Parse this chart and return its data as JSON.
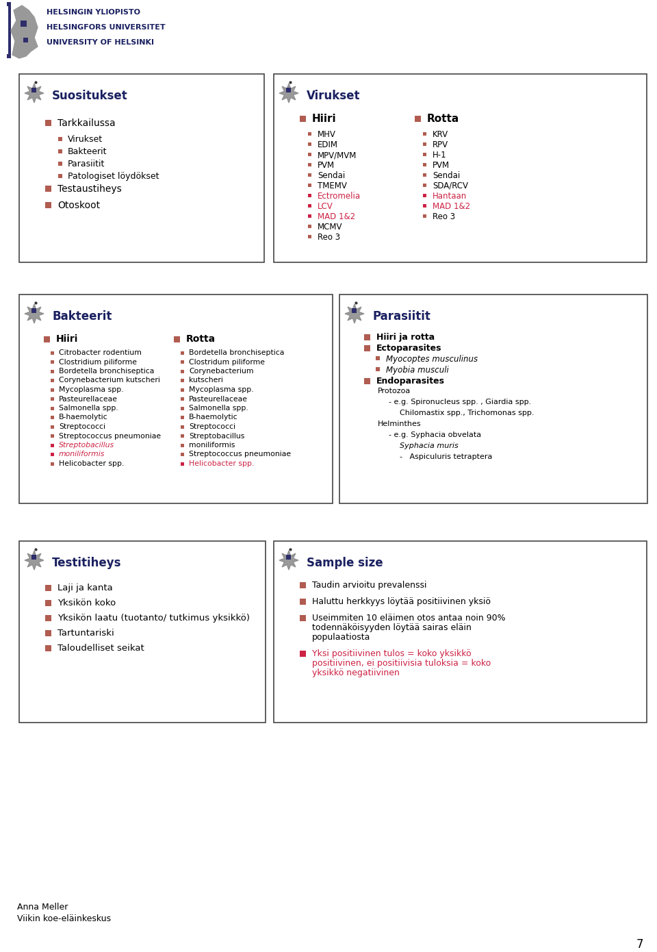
{
  "bg_color": "#ffffff",
  "dark_navy": "#1a2060",
  "bullet_color": "#b05c50",
  "red_color": "#cc2244",
  "header_lines": [
    "HELSINGIN YLIOPISTO",
    "HELSINGFORS UNIVERSITET",
    "UNIVERSITY OF HELSINKI"
  ],
  "footer_name": "Anna Meller",
  "footer_org": "Viikin koe-eläinkeskus",
  "page_num": "7",
  "box1_title": "Suositukset",
  "box1_content": [
    {
      "level": 1,
      "text": "Tarkkailussa"
    },
    {
      "level": 2,
      "text": "Virukset"
    },
    {
      "level": 2,
      "text": "Bakteerit"
    },
    {
      "level": 2,
      "text": "Parasiitit"
    },
    {
      "level": 2,
      "text": "Patologiset löydökset"
    },
    {
      "level": 1,
      "text": "Testaustiheys"
    },
    {
      "level": 1,
      "text": "Otoskoot"
    }
  ],
  "box2_title": "Virukset",
  "box2_col1_label": "Hiiri",
  "box2_col1": [
    "MHV",
    "EDIM",
    "MPV/MVM",
    "PVM",
    "Sendai",
    "TMEMV",
    "Ectromelia",
    "LCV",
    "MAD 1&2",
    "MCMV",
    "Reo 3"
  ],
  "box2_col1_red": [
    false,
    false,
    false,
    false,
    false,
    false,
    true,
    true,
    true,
    false,
    false
  ],
  "box2_col2_label": "Rotta",
  "box2_col2": [
    "KRV",
    "RPV",
    "H-1",
    "PVM",
    "Sendai",
    "SDA/RCV",
    "Hantaan",
    "MAD 1&2",
    "Reo 3"
  ],
  "box2_col2_red": [
    false,
    false,
    false,
    false,
    false,
    false,
    true,
    true,
    false
  ],
  "box3_title": "Bakteerit",
  "box3_col1_label": "Hiiri",
  "box3_col1": [
    "Citrobacter rodentium",
    "Clostridium piliforme",
    "Bordetella bronchiseptica",
    "Corynebacterium kutscheri",
    "Mycoplasma spp.",
    "Pasteurellaceae",
    "Salmonella spp.",
    "B-haemolytic",
    "Streptococci",
    "Streptococcus pneumoniae",
    "Streptobacillus",
    "moniliformis",
    "Helicobacter spp."
  ],
  "box3_col1_red": [
    false,
    false,
    false,
    false,
    false,
    false,
    false,
    false,
    false,
    false,
    true,
    true,
    false
  ],
  "box3_col1_italic": [
    false,
    false,
    false,
    false,
    false,
    false,
    false,
    false,
    false,
    false,
    true,
    true,
    false
  ],
  "box3_col2_label": "Rotta",
  "box3_col2": [
    "Bordetella bronchiseptica",
    "Clostridum piliforme",
    "Corynebacterium",
    "kutscheri",
    "Mycoplasma spp.",
    "Pasteurellaceae",
    "Salmonella spp.",
    "B-haemolytic",
    "Streptococci",
    "Streptobacillus",
    "moniliformis",
    "Streptococcus pneumoniae",
    "Helicobacter spp."
  ],
  "box3_col2_red": [
    false,
    false,
    false,
    false,
    false,
    false,
    false,
    false,
    false,
    false,
    false,
    false,
    true
  ],
  "box3_col2_italic": [
    false,
    false,
    false,
    false,
    false,
    false,
    false,
    false,
    false,
    false,
    false,
    false,
    false
  ],
  "box4_title": "Parasiitit",
  "box4_lines": [
    {
      "indent": 0,
      "text": "Hiiri ja rotta",
      "bold": true,
      "bullet": true,
      "italic": false
    },
    {
      "indent": 0,
      "text": "Ectoparasites",
      "bold": true,
      "bullet": true,
      "italic": false
    },
    {
      "indent": 1,
      "text": "Myocoptes musculinus",
      "bold": false,
      "bullet": true,
      "italic": true
    },
    {
      "indent": 1,
      "text": "Myobia musculi",
      "bold": false,
      "bullet": true,
      "italic": true
    },
    {
      "indent": 0,
      "text": "Endoparasites",
      "bold": true,
      "bullet": true,
      "italic": false
    },
    {
      "indent": 1,
      "text": "Protozoa",
      "bold": false,
      "bullet": false,
      "italic": false
    },
    {
      "indent": 2,
      "text": "- e.g. Spironucleus spp. , Giardia spp.",
      "bold": false,
      "bullet": false,
      "italic": false
    },
    {
      "indent": 3,
      "text": "Chilomastix spp., Trichomonas spp.",
      "bold": false,
      "bullet": false,
      "italic": false
    },
    {
      "indent": 1,
      "text": "Helminthes",
      "bold": false,
      "bullet": false,
      "italic": false
    },
    {
      "indent": 2,
      "text": "- e.g. Syphacia obvelata",
      "bold": false,
      "bullet": false,
      "italic": false
    },
    {
      "indent": 3,
      "text": "Syphacia muris",
      "bold": false,
      "bullet": false,
      "italic": true
    },
    {
      "indent": 3,
      "text": "-   Aspiculuris tetraptera",
      "bold": false,
      "bullet": false,
      "italic": false
    }
  ],
  "box5_title": "Testitiheys",
  "box5_content": [
    "Laji ja kanta",
    "Yksikön koko",
    "Yksikön laatu (tuotanto/ tutkimus yksikkö)",
    "Tartuntariski",
    "Taloudelliset seikat"
  ],
  "box6_title": "Sample size",
  "box6_content": [
    {
      "text": "Taudin arvioitu prevalenssi",
      "red": false
    },
    {
      "text": "Haluttu herkkyys löytää positiivinen yksiö",
      "red": false
    },
    {
      "text": "Useimmiten 10 eläimen otos antaa noin 90%\ntodennäköisyyden löytää sairas eläin\npopulaatiosta",
      "red": false
    },
    {
      "text": "Yksi positiivinen tulos = koko yksikkö\npositiivinen, ei positiivisia tuloksia = koko\nyksikkö negatiivinen",
      "red": true
    }
  ]
}
